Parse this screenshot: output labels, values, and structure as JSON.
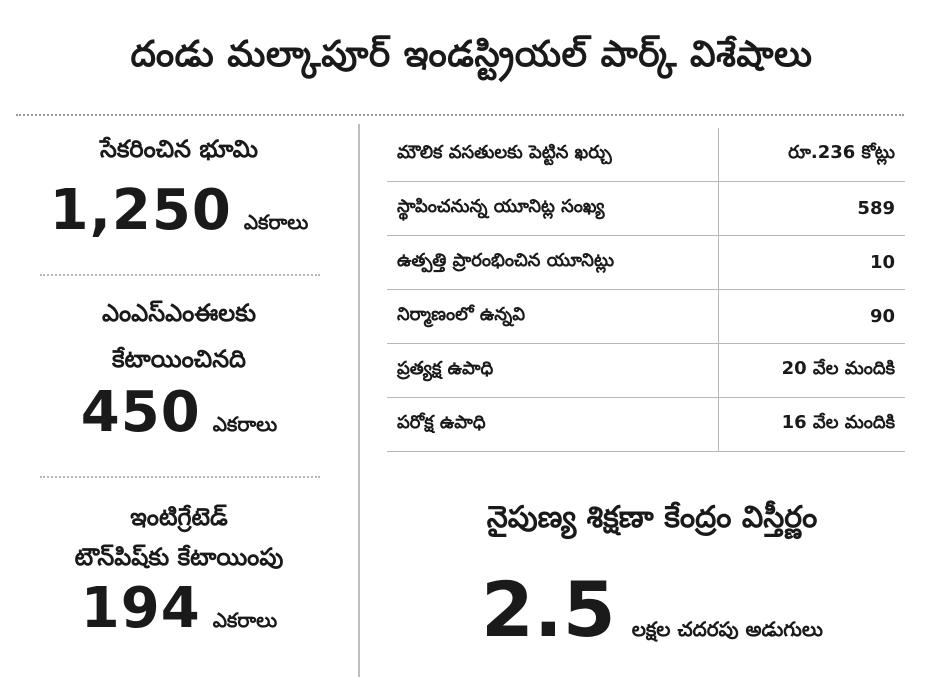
{
  "title": "దండు మల్కాపూర్ ఇండస్ట్రియల్ పార్క్ విశేషాలు",
  "left": {
    "land_acquired": {
      "label": "సేకరించిన భూమి",
      "value": "1,250",
      "unit": "ఎకరాలు"
    },
    "msme": {
      "label_line1": "ఎంఎస్ఎంఈలకు",
      "label_line2": "కేటాయించినది",
      "value": "450",
      "unit": "ఎకరాలు"
    },
    "township": {
      "label_line1": "ఇంటిగ్రేటెడ్",
      "label_line2": "టౌన్‌పిష్‌కు కేటాయింపు",
      "value": "194",
      "unit": "ఎకరాలు"
    }
  },
  "table": {
    "rows": [
      {
        "label": "మౌలిక వసతులకు పెట్టిన ఖర్చు",
        "value": "రూ.236 కోట్లు"
      },
      {
        "label": "స్థాపించనున్న యూనిట్ల సంఖ్య",
        "value": "589"
      },
      {
        "label": "ఉత్పత్తి ప్రారంభించిన యూనిట్లు",
        "value": "10"
      },
      {
        "label": "నిర్మాణంలో ఉన్నవి",
        "value": "90"
      },
      {
        "label": "ప్రత్యక్ష ఉపాధి",
        "value": "20 వేల మందికి"
      },
      {
        "label": "పరోక్ష ఉపాధి",
        "value": "16 వేల మందికి"
      }
    ]
  },
  "skill_center": {
    "title": "నైపుణ్య శిక్షణా కేంద్రం విస్తీర్ణం",
    "value": "2.5",
    "unit": "లక్షల చదరపు అడుగులు"
  }
}
